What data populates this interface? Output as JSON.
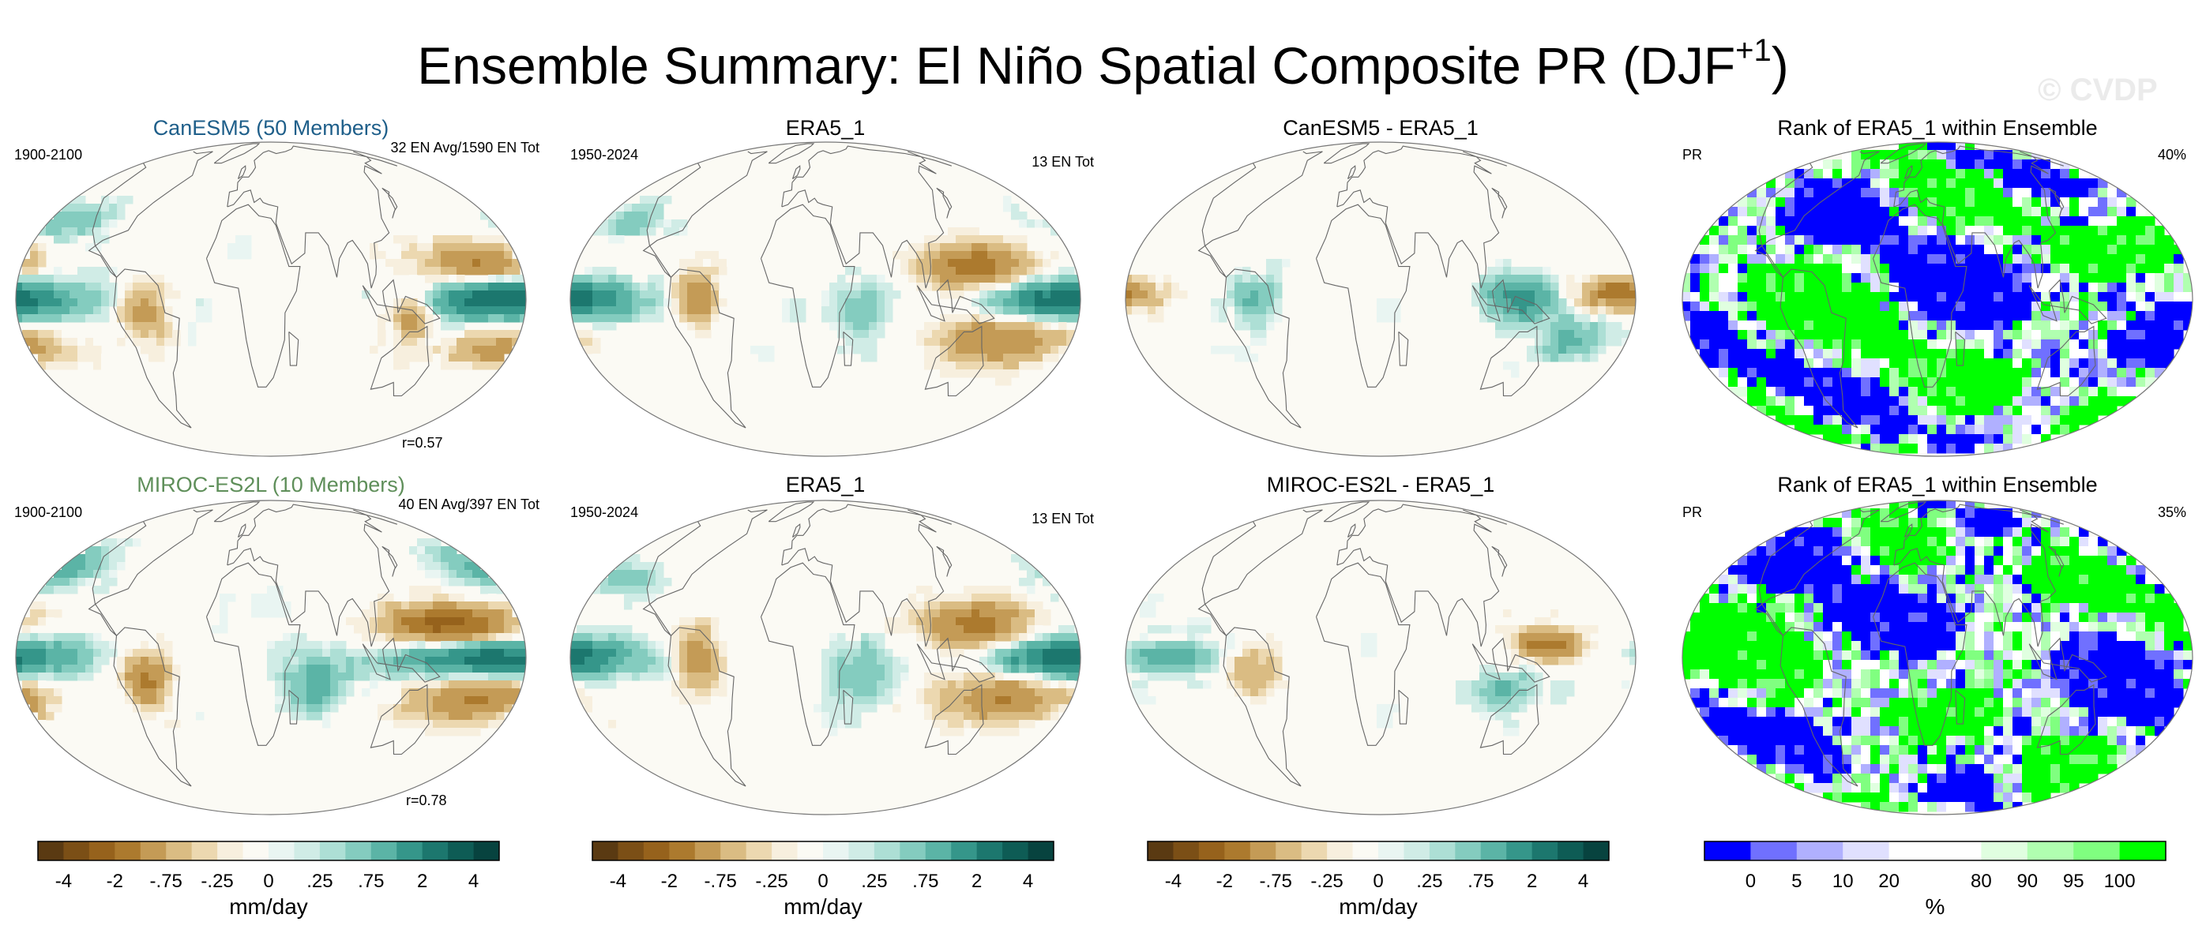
{
  "figure": {
    "title_main": "Ensemble Summary: El Niño Spatial Composite PR (DJF",
    "title_sup": "+1",
    "title_close": ")",
    "watermark": "© CVDP"
  },
  "palettes": {
    "diverging": [
      "#5a3a12",
      "#7b4f16",
      "#96621c",
      "#ac7a2e",
      "#c49b56",
      "#dabc83",
      "#ecd8b0",
      "#f7efde",
      "#fbfaf4",
      "#e9f5f2",
      "#d0ece6",
      "#addfd5",
      "#84ccbf",
      "#5bb4a6",
      "#35968a",
      "#1c776e",
      "#0e5c55",
      "#07433f"
    ],
    "rank": [
      "#0000ff",
      "#7070ff",
      "#b0b0ff",
      "#e0e0ff",
      "#ffffff",
      "#ffffff",
      "#e0ffe0",
      "#b0ffb0",
      "#80ff80",
      "#00ff00"
    ]
  },
  "colorbars": [
    {
      "ticks": [
        "-4",
        "-2",
        "-.75",
        "-.25",
        "0",
        ".25",
        ".75",
        "2",
        "4"
      ],
      "label": "mm/day"
    },
    {
      "ticks": [
        "-4",
        "-2",
        "-.75",
        "-.25",
        "0",
        ".25",
        ".75",
        "2",
        "4"
      ],
      "label": "mm/day"
    },
    {
      "ticks": [
        "-4",
        "-2",
        "-.75",
        "-.25",
        "0",
        ".25",
        ".75",
        "2",
        "4"
      ],
      "label": "mm/day"
    },
    {
      "ticks": [
        "0",
        "5",
        "10",
        "20",
        "80",
        "90",
        "95",
        "100"
      ],
      "label": "%"
    }
  ],
  "panels": {
    "r1c1": {
      "title": "CanESM5 (50 Members)",
      "title_color": "#1f5f8a",
      "left": "1900-2100",
      "right": "32 EN Avg/1590 EN Tot",
      "bottom": "r=0.57"
    },
    "r1c2": {
      "title": "ERA5_1",
      "left": "1950-2024",
      "right": "13 EN Tot"
    },
    "r1c3": {
      "title": "CanESM5 - ERA5_1"
    },
    "r1c4": {
      "title": "Rank of ERA5_1 within Ensemble",
      "left": "PR",
      "right": "40%"
    },
    "r2c1": {
      "title": "MIROC-ES2L (10 Members)",
      "title_color": "#5f8f5a",
      "left": "1900-2100",
      "right": "40 EN Avg/397 EN Tot",
      "bottom": "r=0.78"
    },
    "r2c2": {
      "title": "ERA5_1",
      "left": "1950-2024",
      "right": "13 EN Tot"
    },
    "r2c3": {
      "title": "MIROC-ES2L - ERA5_1"
    },
    "r2c4": {
      "title": "Rank of ERA5_1 within Ensemble",
      "left": "PR",
      "right": "35%"
    }
  },
  "chart_data": {
    "type": "heatmap",
    "title": "Ensemble Summary: El Niño Spatial Composite PR (DJF+1)",
    "projection": "global ellipse map",
    "variable": "PR",
    "season": "DJF+1",
    "rows": [
      {
        "model": "CanESM5",
        "members": 50,
        "model_period": "1900-2100",
        "en_avg": 32,
        "en_tot": 1590,
        "pattern_correlation": 0.57,
        "obs": "ERA5_1",
        "obs_period": "1950-2024",
        "obs_en_tot": 13,
        "rank_percent": 40,
        "features": {
          "model": [
            {
              "lon": 195,
              "lat": 0,
              "dlon": 55,
              "dlat": 7,
              "v": 4
            },
            {
              "lon": 180,
              "lat": 13,
              "dlon": 40,
              "dlat": 8,
              "v": -2
            },
            {
              "lon": 200,
              "lat": -18,
              "dlon": 40,
              "dlat": 8,
              "v": -1.5
            },
            {
              "lon": 130,
              "lat": -5,
              "dlon": 15,
              "dlat": 10,
              "v": -1.8
            },
            {
              "lon": 300,
              "lat": -5,
              "dlon": 15,
              "dlat": 10,
              "v": -1.8
            },
            {
              "lon": 230,
              "lat": 30,
              "dlon": 25,
              "dlat": 8,
              "v": 1.2
            }
          ],
          "obs": [
            {
              "lon": 200,
              "lat": 0,
              "dlon": 50,
              "dlat": 7,
              "v": 4
            },
            {
              "lon": 140,
              "lat": 12,
              "dlon": 40,
              "dlat": 9,
              "v": -2.5
            },
            {
              "lon": 160,
              "lat": -15,
              "dlon": 45,
              "dlat": 10,
              "v": -2
            },
            {
              "lon": 300,
              "lat": 0,
              "dlon": 15,
              "dlat": 10,
              "v": -2
            },
            {
              "lon": 55,
              "lat": -5,
              "dlon": 20,
              "dlat": 12,
              "v": 1.2
            },
            {
              "lon": 230,
              "lat": 30,
              "dlon": 25,
              "dlat": 8,
              "v": 1
            }
          ],
          "diff": [
            {
              "lon": 130,
              "lat": 0,
              "dlon": 25,
              "dlat": 8,
              "v": 2.5
            },
            {
              "lon": 200,
              "lat": 2,
              "dlon": 30,
              "dlat": 6,
              "v": -2.5
            },
            {
              "lon": 300,
              "lat": 0,
              "dlon": 15,
              "dlat": 8,
              "v": 1.5
            },
            {
              "lon": 170,
              "lat": -15,
              "dlon": 20,
              "dlat": 8,
              "v": 1.5
            }
          ]
        }
      },
      {
        "model": "MIROC-ES2L",
        "members": 10,
        "model_period": "1900-2100",
        "en_avg": 40,
        "en_tot": 397,
        "pattern_correlation": 0.78,
        "obs": "ERA5_1",
        "obs_period": "1950-2024",
        "obs_en_tot": 13,
        "rank_percent": 35,
        "features": {
          "model": [
            {
              "lon": 185,
              "lat": 0,
              "dlon": 60,
              "dlat": 7,
              "v": 4
            },
            {
              "lon": 160,
              "lat": 12,
              "dlon": 45,
              "dlat": 8,
              "v": -3.5
            },
            {
              "lon": 180,
              "lat": -15,
              "dlon": 45,
              "dlat": 9,
              "v": -2.2
            },
            {
              "lon": 300,
              "lat": -8,
              "dlon": 15,
              "dlat": 10,
              "v": -2.5
            },
            {
              "lon": 60,
              "lat": -10,
              "dlon": 25,
              "dlat": 12,
              "v": 1.5
            },
            {
              "lon": 210,
              "lat": 35,
              "dlon": 35,
              "dlat": 10,
              "v": 1.5
            }
          ],
          "obs": [
            {
              "lon": 200,
              "lat": 0,
              "dlon": 50,
              "dlat": 7,
              "v": 4
            },
            {
              "lon": 140,
              "lat": 12,
              "dlon": 40,
              "dlat": 9,
              "v": -2.5
            },
            {
              "lon": 160,
              "lat": -15,
              "dlon": 45,
              "dlat": 10,
              "v": -2
            },
            {
              "lon": 300,
              "lat": 0,
              "dlon": 15,
              "dlat": 10,
              "v": -2
            },
            {
              "lon": 55,
              "lat": -5,
              "dlon": 20,
              "dlat": 12,
              "v": 1.2
            },
            {
              "lon": 230,
              "lat": 30,
              "dlon": 25,
              "dlat": 8,
              "v": 1
            }
          ],
          "diff": [
            {
              "lon": 150,
              "lat": 5,
              "dlon": 25,
              "dlat": 6,
              "v": -2.5
            },
            {
              "lon": 240,
              "lat": 0,
              "dlon": 30,
              "dlat": 6,
              "v": 2
            },
            {
              "lon": 300,
              "lat": -5,
              "dlon": 15,
              "dlat": 8,
              "v": -1.5
            },
            {
              "lon": 120,
              "lat": -12,
              "dlon": 25,
              "dlat": 8,
              "v": 1.2
            }
          ]
        }
      }
    ]
  }
}
